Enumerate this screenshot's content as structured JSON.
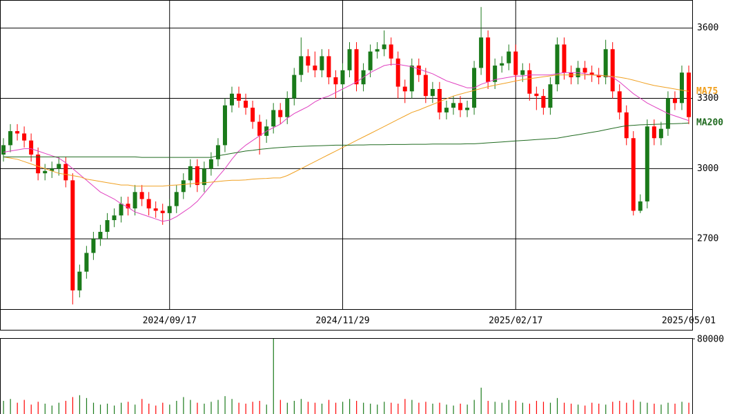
{
  "chart_data": {
    "type": "candlestick",
    "categories": [
      null,
      null,
      null,
      null,
      null,
      null,
      null,
      null,
      null,
      null,
      null,
      null,
      null,
      null,
      null,
      null,
      null,
      null,
      null,
      null,
      null,
      null,
      null,
      null,
      "2024/09/17",
      null,
      null,
      null,
      null,
      null,
      null,
      null,
      null,
      null,
      null,
      null,
      null,
      null,
      null,
      null,
      null,
      null,
      null,
      null,
      null,
      null,
      null,
      null,
      null,
      "2024/11/29",
      null,
      null,
      null,
      null,
      null,
      null,
      null,
      null,
      null,
      null,
      null,
      null,
      null,
      null,
      null,
      null,
      null,
      null,
      null,
      null,
      null,
      null,
      null,
      null,
      "2025/02/17",
      null,
      null,
      null,
      null,
      null,
      null,
      null,
      null,
      null,
      null,
      null,
      null,
      null,
      null,
      null,
      null,
      null,
      null,
      null,
      null,
      null,
      null,
      null,
      null,
      "2025/05/01"
    ],
    "open": [
      3060,
      3100,
      3160,
      3150,
      3120,
      3060,
      2980,
      2990,
      3000,
      3020,
      2950,
      2480,
      2560,
      2640,
      2700,
      2730,
      2780,
      2800,
      2850,
      2830,
      2900,
      2870,
      2830,
      2820,
      2810,
      2840,
      2900,
      2950,
      3010,
      2930,
      3000,
      3040,
      3100,
      3270,
      3320,
      3290,
      3260,
      3200,
      3140,
      3180,
      3250,
      3220,
      3300,
      3400,
      3480,
      3440,
      3420,
      3480,
      3390,
      3360,
      3420,
      3510,
      3360,
      3420,
      3500,
      3510,
      3530,
      3470,
      3350,
      3330,
      3440,
      3400,
      3310,
      3340,
      3240,
      3260,
      3280,
      3250,
      3260,
      3430,
      3560,
      3370,
      3440,
      3450,
      3500,
      3400,
      3420,
      3320,
      3310,
      3260,
      3360,
      3530,
      3410,
      3390,
      3430,
      3410,
      3400,
      3390,
      3510,
      3330,
      3240,
      3130,
      2820,
      2860,
      3180,
      3130,
      3170,
      3300,
      3280,
      3410
    ],
    "high": [
      3130,
      3190,
      3190,
      3180,
      3150,
      3090,
      3020,
      3030,
      3050,
      3050,
      2980,
      2590,
      2670,
      2730,
      2760,
      2810,
      2830,
      2880,
      2880,
      2930,
      2930,
      2900,
      2860,
      2850,
      2870,
      2930,
      2980,
      3040,
      3040,
      3030,
      3070,
      3130,
      3300,
      3350,
      3350,
      3320,
      3290,
      3230,
      3210,
      3280,
      3280,
      3330,
      3430,
      3560,
      3510,
      3500,
      3510,
      3510,
      3420,
      3450,
      3540,
      3540,
      3450,
      3530,
      3540,
      3590,
      3560,
      3500,
      3380,
      3470,
      3470,
      3430,
      3370,
      3370,
      3290,
      3310,
      3310,
      3290,
      3460,
      3690,
      3590,
      3470,
      3480,
      3530,
      3530,
      3450,
      3450,
      3350,
      3340,
      3390,
      3560,
      3560,
      3440,
      3460,
      3460,
      3440,
      3430,
      3550,
      3540,
      3360,
      3270,
      3160,
      2890,
      3210,
      3210,
      3200,
      3330,
      3330,
      3440,
      3440
    ],
    "low": [
      3030,
      3070,
      3120,
      3090,
      3030,
      2950,
      2950,
      2960,
      2970,
      2920,
      2420,
      2450,
      2530,
      2610,
      2670,
      2700,
      2750,
      2770,
      2800,
      2800,
      2840,
      2800,
      2790,
      2760,
      2780,
      2810,
      2870,
      2920,
      2900,
      2900,
      2970,
      3010,
      3070,
      3240,
      3260,
      3230,
      3170,
      3060,
      3110,
      3150,
      3190,
      3190,
      3270,
      3370,
      3410,
      3390,
      3390,
      3360,
      3300,
      3330,
      3390,
      3330,
      3330,
      3390,
      3470,
      3480,
      3440,
      3300,
      3280,
      3300,
      3370,
      3280,
      3280,
      3210,
      3210,
      3230,
      3220,
      3220,
      3230,
      3400,
      3340,
      3340,
      3410,
      3420,
      3370,
      3370,
      3290,
      3250,
      3230,
      3230,
      3330,
      3380,
      3360,
      3360,
      3380,
      3370,
      3360,
      3360,
      3300,
      3210,
      3100,
      2800,
      2810,
      2830,
      3100,
      3100,
      3140,
      3250,
      3250,
      3190
    ],
    "close": [
      3100,
      3160,
      3150,
      3120,
      3060,
      2980,
      2990,
      3000,
      3020,
      2950,
      2480,
      2560,
      2640,
      2700,
      2730,
      2780,
      2800,
      2850,
      2830,
      2900,
      2870,
      2830,
      2820,
      2810,
      2840,
      2900,
      2950,
      3010,
      2930,
      3000,
      3040,
      3100,
      3270,
      3320,
      3290,
      3260,
      3200,
      3140,
      3180,
      3250,
      3220,
      3300,
      3400,
      3480,
      3440,
      3420,
      3480,
      3390,
      3360,
      3420,
      3510,
      3360,
      3420,
      3500,
      3510,
      3530,
      3470,
      3350,
      3330,
      3440,
      3400,
      3310,
      3340,
      3240,
      3260,
      3280,
      3250,
      3260,
      3430,
      3560,
      3370,
      3440,
      3450,
      3500,
      3400,
      3420,
      3320,
      3310,
      3260,
      3360,
      3530,
      3410,
      3390,
      3430,
      3410,
      3400,
      3390,
      3510,
      3330,
      3240,
      3130,
      2820,
      2860,
      3180,
      3130,
      3170,
      3300,
      3280,
      3410,
      3220
    ],
    "up_color": "#1a7a1a",
    "down_color": "#ff0000",
    "ylim": [
      2400,
      3720
    ],
    "yticks": [
      2700,
      3000,
      3300,
      3600
    ],
    "grid": true,
    "overlays": [
      {
        "color": "#e040c0",
        "values": [
          3070,
          3075,
          3080,
          3085,
          3085,
          3075,
          3065,
          3055,
          3045,
          3025,
          3000,
          2975,
          2950,
          2925,
          2900,
          2885,
          2870,
          2850,
          2835,
          2815,
          2805,
          2795,
          2785,
          2775,
          2780,
          2795,
          2815,
          2835,
          2860,
          2895,
          2930,
          2965,
          3000,
          3040,
          3075,
          3100,
          3120,
          3140,
          3160,
          3175,
          3190,
          3215,
          3235,
          3250,
          3265,
          3285,
          3300,
          3310,
          3325,
          3340,
          3355,
          3370,
          3390,
          3410,
          3425,
          3440,
          3445,
          3445,
          3440,
          3435,
          3425,
          3415,
          3405,
          3390,
          3375,
          3365,
          3355,
          3345,
          3345,
          3360,
          3370,
          3380,
          3385,
          3390,
          3395,
          3395,
          3400,
          3400,
          3400,
          3400,
          3405,
          3410,
          3410,
          3410,
          3405,
          3400,
          3400,
          3395,
          3390,
          3370,
          3345,
          3320,
          3300,
          3280,
          3265,
          3250,
          3235,
          3225,
          3215,
          3205
        ]
      },
      {
        "name": "MA75",
        "color": "#f0a020",
        "values": [
          3050,
          3045,
          3040,
          3030,
          3020,
          3010,
          3000,
          2990,
          2980,
          2975,
          2970,
          2965,
          2955,
          2950,
          2945,
          2940,
          2935,
          2930,
          2930,
          2925,
          2925,
          2925,
          2925,
          2925,
          2928,
          2930,
          2932,
          2935,
          2938,
          2940,
          2942,
          2945,
          2948,
          2950,
          2950,
          2952,
          2955,
          2957,
          2958,
          2960,
          2960,
          2970,
          2985,
          3000,
          3015,
          3030,
          3045,
          3060,
          3075,
          3090,
          3105,
          3120,
          3135,
          3150,
          3165,
          3180,
          3195,
          3210,
          3225,
          3240,
          3250,
          3262,
          3274,
          3286,
          3298,
          3310,
          3318,
          3326,
          3334,
          3342,
          3350,
          3356,
          3362,
          3368,
          3374,
          3380,
          3384,
          3388,
          3392,
          3396,
          3400,
          3400,
          3400,
          3400,
          3400,
          3400,
          3398,
          3396,
          3394,
          3390,
          3385,
          3378,
          3370,
          3362,
          3355,
          3350,
          3345,
          3340,
          3335,
          3330
        ]
      },
      {
        "name": "MA200",
        "color": "#1f6a1f",
        "values": [
          3050,
          3050,
          3050,
          3050,
          3050,
          3050,
          3050,
          3050,
          3050,
          3050,
          3050,
          3050,
          3050,
          3050,
          3050,
          3050,
          3050,
          3050,
          3050,
          3050,
          3048,
          3048,
          3048,
          3048,
          3048,
          3048,
          3048,
          3048,
          3048,
          3048,
          3048,
          3055,
          3060,
          3065,
          3070,
          3075,
          3078,
          3082,
          3085,
          3088,
          3090,
          3092,
          3094,
          3095,
          3096,
          3097,
          3098,
          3099,
          3100,
          3100,
          3100,
          3101,
          3101,
          3102,
          3102,
          3102,
          3103,
          3103,
          3103,
          3104,
          3104,
          3104,
          3105,
          3105,
          3105,
          3105,
          3105,
          3106,
          3106,
          3108,
          3110,
          3112,
          3114,
          3116,
          3118,
          3120,
          3122,
          3124,
          3126,
          3128,
          3130,
          3135,
          3140,
          3145,
          3150,
          3155,
          3160,
          3166,
          3172,
          3178,
          3183,
          3185,
          3187,
          3188,
          3189,
          3190,
          3191,
          3192,
          3193,
          3195
        ]
      }
    ],
    "volume": {
      "values": [
        14000,
        16000,
        12000,
        15000,
        10000,
        13000,
        11000,
        9000,
        12000,
        14000,
        18000,
        20000,
        17000,
        12000,
        10000,
        11000,
        9000,
        12000,
        13000,
        10000,
        16000,
        11000,
        9000,
        12000,
        10000,
        14000,
        18000,
        15000,
        12000,
        11000,
        13000,
        15000,
        19000,
        16000,
        12000,
        11000,
        13000,
        14000,
        10000,
        80000,
        15000,
        12000,
        14000,
        16000,
        13000,
        12000,
        11000,
        15000,
        12000,
        13000,
        16000,
        14000,
        12000,
        11000,
        10000,
        13000,
        12000,
        11000,
        16000,
        15000,
        12000,
        13000,
        11000,
        12000,
        10000,
        9000,
        11000,
        10000,
        15000,
        28000,
        14000,
        13000,
        12000,
        15000,
        14000,
        12000,
        11000,
        14000,
        13000,
        12000,
        17000,
        12000,
        11000,
        10000,
        9000,
        12000,
        11000,
        10000,
        13000,
        14000,
        12000,
        15000,
        13000,
        12000,
        11000,
        10000,
        12000,
        11000,
        13000,
        12000
      ],
      "ylim": [
        0,
        80000
      ],
      "yticks": [
        80000
      ]
    }
  }
}
